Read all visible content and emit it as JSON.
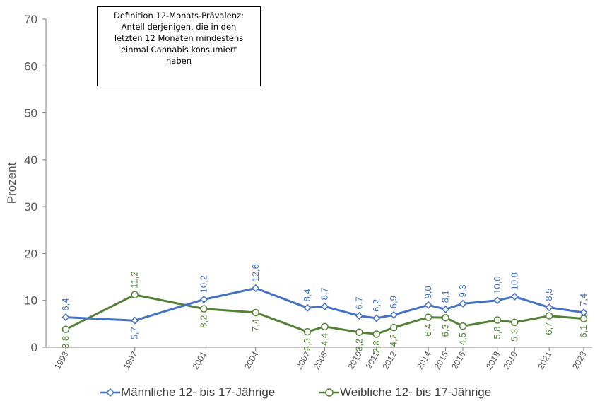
{
  "chart_data": {
    "type": "line",
    "ylabel": "Prozent",
    "xlabel": "",
    "ylim": [
      0,
      70
    ],
    "yticks": [
      "0",
      "10",
      "20",
      "30",
      "40",
      "50",
      "60",
      "70"
    ],
    "x": [
      "1993",
      "1997",
      "2001",
      "2004",
      "2007",
      "2008",
      "2010",
      "2011",
      "2012",
      "2014",
      "2015",
      "2016",
      "2018",
      "2019",
      "2021",
      "2023"
    ],
    "series": [
      {
        "name": "Männliche 12- bis 17-Jährige",
        "color": "#4472C4",
        "marker": "diamond",
        "values": [
          6.4,
          5.7,
          10.2,
          12.6,
          8.4,
          8.7,
          6.7,
          6.2,
          6.9,
          9.0,
          8.1,
          9.3,
          10.0,
          10.8,
          8.5,
          7.4
        ],
        "labels": [
          "6,4",
          "5,7",
          "10,2",
          "12,6",
          "8,4",
          "8,7",
          "6,7",
          "6,2",
          "6,9",
          "9,0",
          "8,1",
          "9,3",
          "10,0",
          "10,8",
          "8,5",
          "7,4"
        ]
      },
      {
        "name": "Weibliche 12- bis 17-Jährige",
        "color": "#548235",
        "marker": "circle",
        "values": [
          3.8,
          11.2,
          8.2,
          7.4,
          3.3,
          4.4,
          3.2,
          2.8,
          4.2,
          6.4,
          6.3,
          4.5,
          5.8,
          5.3,
          6.7,
          6.1
        ],
        "labels": [
          "3,8",
          "11,2",
          "8,2",
          "7,4",
          "3,3",
          "4,4",
          "3,2",
          "2,8",
          "4,2",
          "6,4",
          "6,3",
          "4,5",
          "5,8",
          "5,3",
          "6,7",
          "6,1"
        ]
      }
    ],
    "annotation": {
      "lines": [
        "Definition 12-Monats-Prävalenz:",
        "Anteil derjenigen, die in den",
        "letzten 12 Monaten mindestens",
        "einmal Cannabis konsumiert",
        "haben"
      ]
    },
    "grid": false,
    "legend_position": "bottom"
  }
}
